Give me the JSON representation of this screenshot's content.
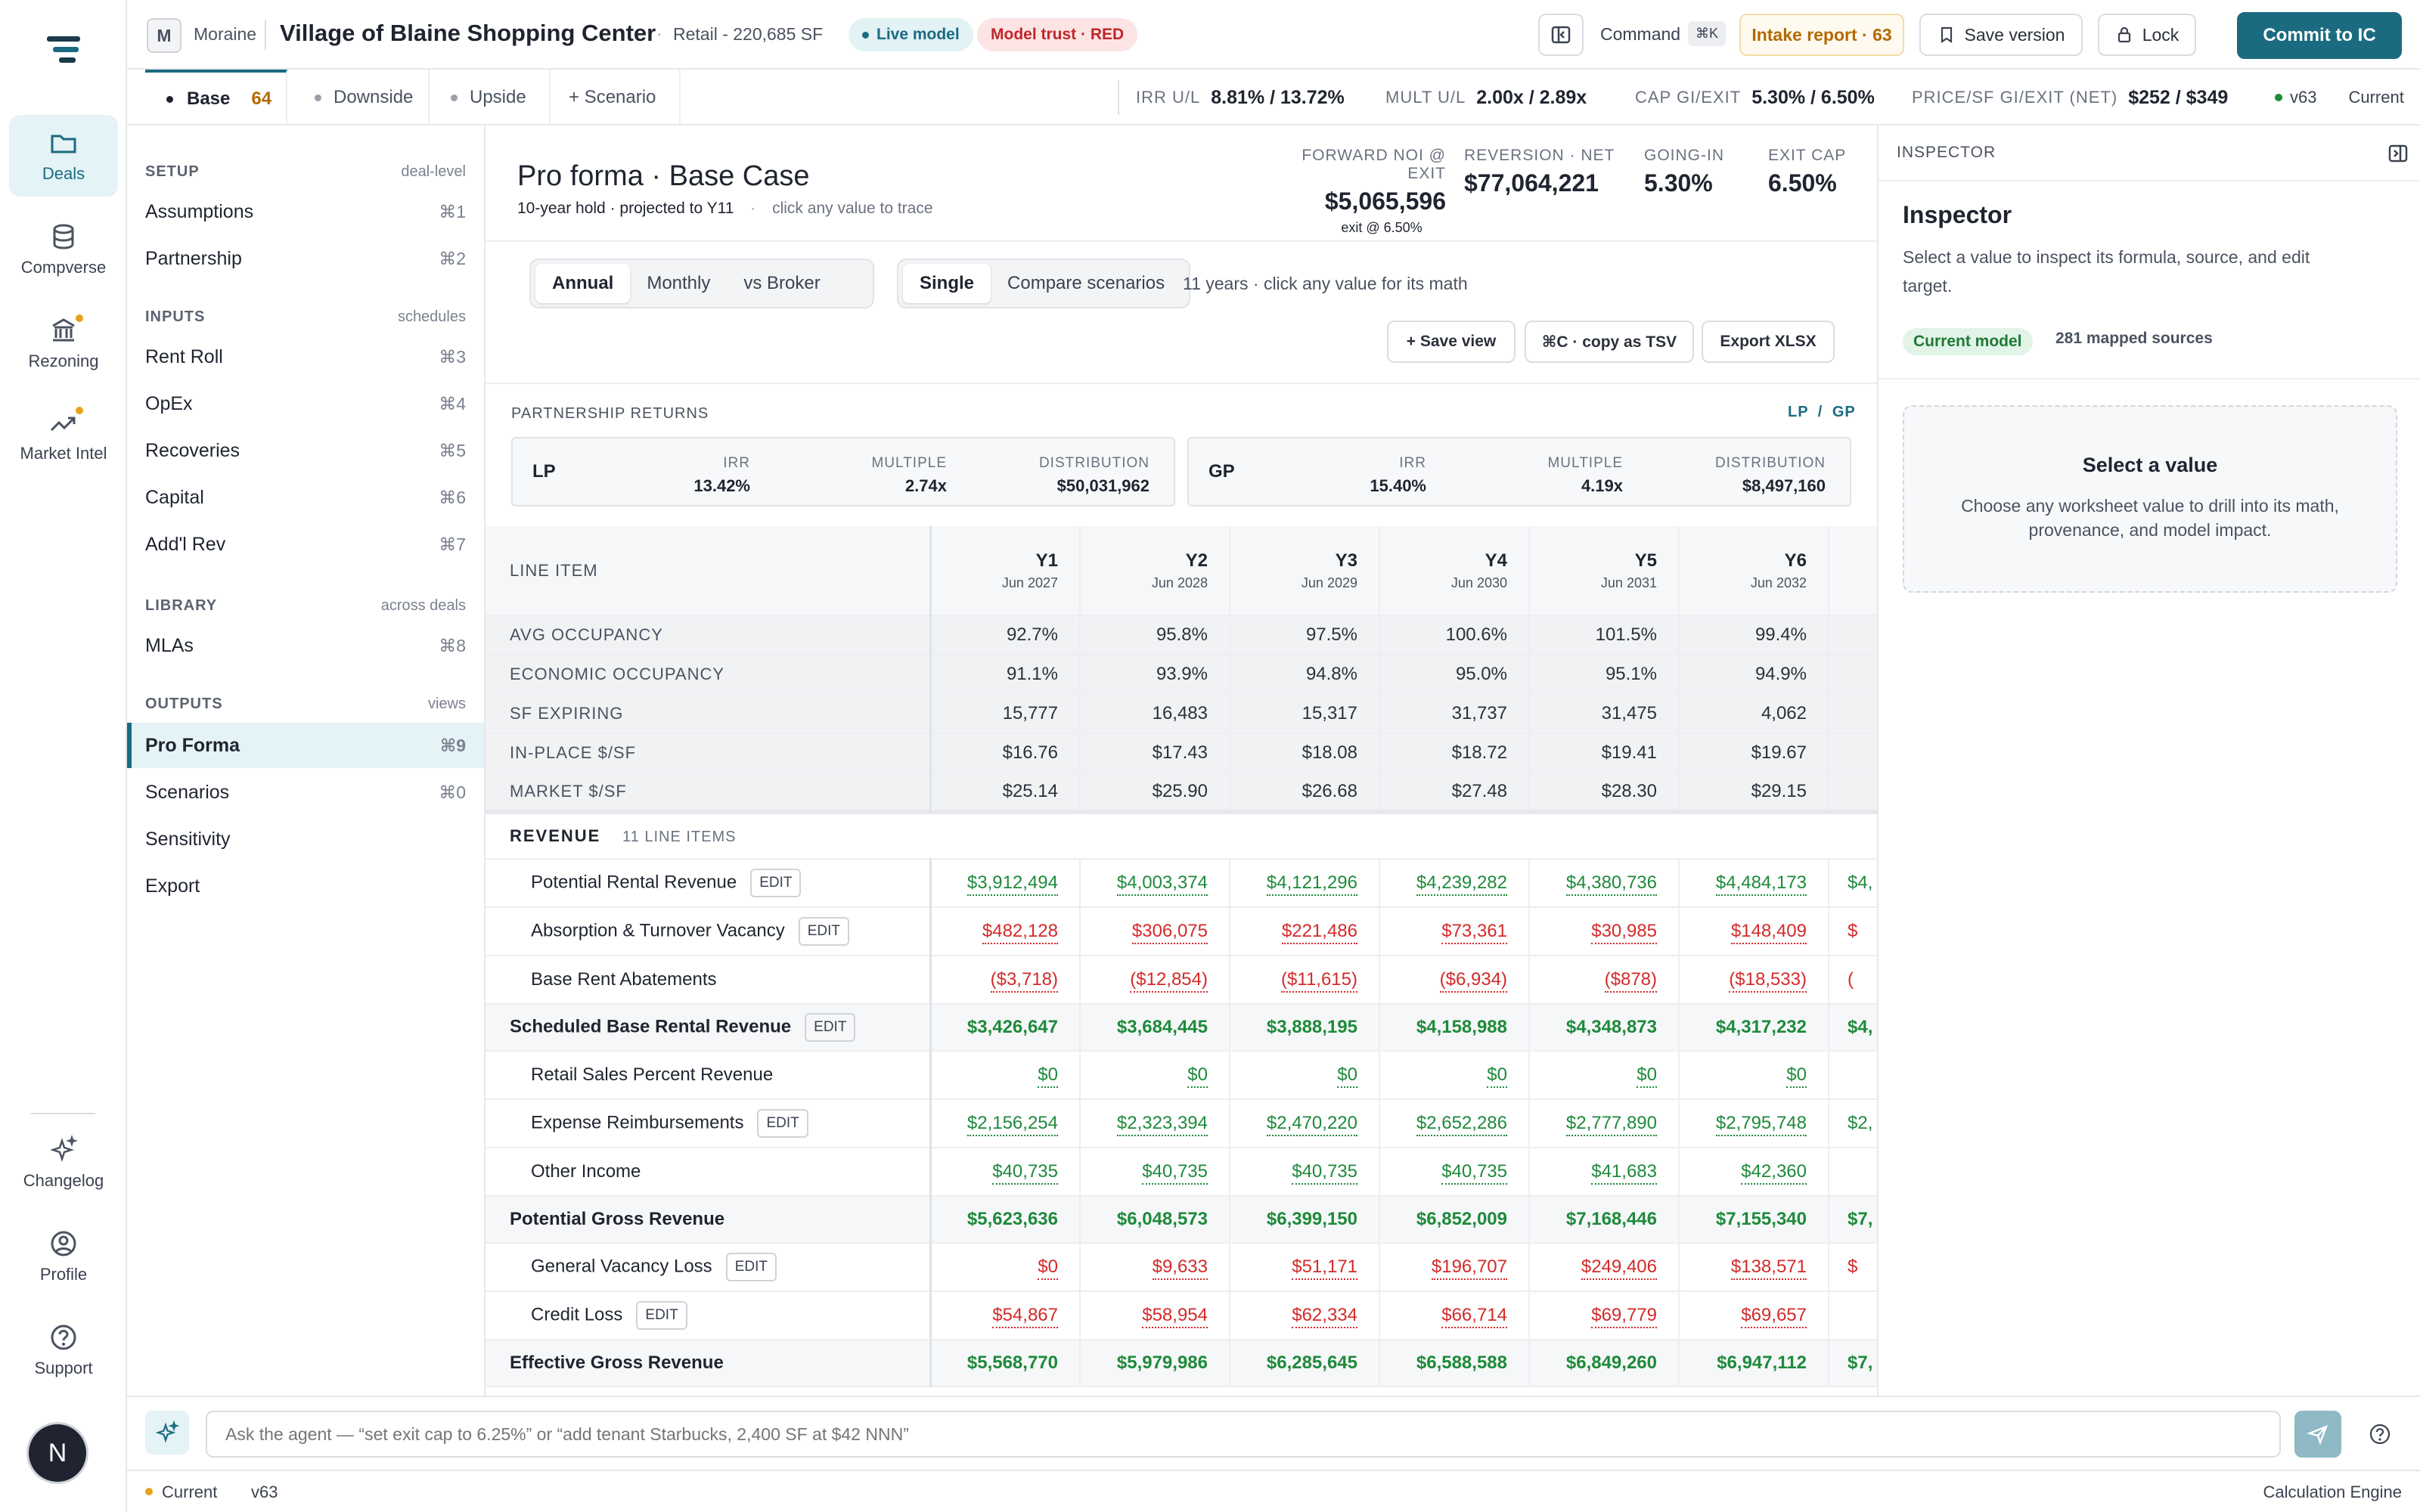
{
  "rail": {
    "items": [
      {
        "label": "Deals",
        "icon": "folder-icon"
      },
      {
        "label": "Compverse",
        "icon": "database-icon"
      },
      {
        "label": "Rezoning",
        "icon": "bank-icon"
      },
      {
        "label": "Market Intel",
        "icon": "trend-icon"
      },
      {
        "label": "Changelog",
        "icon": "sparkle-icon"
      },
      {
        "label": "Profile",
        "icon": "user-icon"
      },
      {
        "label": "Support",
        "icon": "help-icon"
      }
    ],
    "avatar_initial": "N"
  },
  "topbar": {
    "org_initial": "M",
    "org": "Moraine",
    "deal_title": "Village of Blaine Shopping Center",
    "deal_meta": "Retail - 220,685 SF",
    "live_badge": "Live model",
    "trust_badge": "Model trust · RED",
    "command_label": "Command",
    "command_key": "⌘K",
    "intake_label": "Intake report · 63",
    "save_version": "Save version",
    "lock": "Lock",
    "commit": "Commit to IC"
  },
  "scenarios": {
    "tabs": [
      {
        "label": "Base",
        "score": "64"
      },
      {
        "label": "Downside"
      },
      {
        "label": "Upside"
      }
    ],
    "add": "+ Scenario",
    "kpis": [
      {
        "label": "IRR U/L",
        "value": "8.81% / 13.72%"
      },
      {
        "label": "MULT U/L",
        "value": "2.00x / 2.89x"
      },
      {
        "label": "CAP GI/EXIT",
        "value": "5.30% / 6.50%"
      },
      {
        "label": "PRICE/SF GI/EXIT (NET)",
        "value": "$252 / $349"
      }
    ],
    "version": "v63",
    "version_state": "Current"
  },
  "nav": {
    "setup": {
      "title": "SETUP",
      "hint": "deal-level",
      "items": [
        {
          "label": "Assumptions",
          "key": "⌘1"
        },
        {
          "label": "Partnership",
          "key": "⌘2"
        }
      ]
    },
    "inputs": {
      "title": "INPUTS",
      "hint": "schedules",
      "items": [
        {
          "label": "Rent Roll",
          "key": "⌘3"
        },
        {
          "label": "OpEx",
          "key": "⌘4"
        },
        {
          "label": "Recoveries",
          "key": "⌘5"
        },
        {
          "label": "Capital",
          "key": "⌘6"
        },
        {
          "label": "Add'l Rev",
          "key": "⌘7"
        }
      ]
    },
    "library": {
      "title": "LIBRARY",
      "hint": "across deals",
      "items": [
        {
          "label": "MLAs",
          "key": "⌘8"
        }
      ]
    },
    "outputs": {
      "title": "OUTPUTS",
      "hint": "views",
      "items": [
        {
          "label": "Pro Forma",
          "key": "⌘9"
        },
        {
          "label": "Scenarios",
          "key": "⌘0"
        },
        {
          "label": "Sensitivity",
          "key": ""
        },
        {
          "label": "Export",
          "key": ""
        }
      ]
    }
  },
  "proforma": {
    "title": "Pro forma · Base Case",
    "subtitle": "10-year hold · projected to Y11",
    "hint": "click any value to trace",
    "metrics": [
      {
        "label": "FORWARD NOI @ EXIT",
        "value": "$5,065,596",
        "note": "exit @ 6.50%"
      },
      {
        "label": "REVERSION · NET",
        "value": "$77,064,221"
      },
      {
        "label": "GOING-IN",
        "value": "5.30%"
      },
      {
        "label": "EXIT CAP",
        "value": "6.50%"
      }
    ],
    "period_tabs": [
      "Annual",
      "Monthly",
      "vs Broker"
    ],
    "mode_tabs": [
      "Single",
      "Compare scenarios"
    ],
    "years_note": "11 years · click any value for its math",
    "actions": [
      "+ Save view",
      "⌘C · copy as TSV",
      "Export XLSX"
    ]
  },
  "partnership": {
    "title": "PARTNERSHIP RETURNS",
    "toggle": "LP / GP",
    "labels": {
      "irr": "IRR",
      "multiple": "MULTIPLE",
      "distribution": "DISTRIBUTION"
    },
    "lp": {
      "name": "LP",
      "irr": "13.42%",
      "multiple": "2.74x",
      "distribution": "$50,031,962"
    },
    "gp": {
      "name": "GP",
      "irr": "15.40%",
      "multiple": "4.19x",
      "distribution": "$8,497,160"
    }
  },
  "table": {
    "line_item_header": "LINE ITEM",
    "years": [
      {
        "y": "Y1",
        "d": "Jun 2027"
      },
      {
        "y": "Y2",
        "d": "Jun 2028"
      },
      {
        "y": "Y3",
        "d": "Jun 2029"
      },
      {
        "y": "Y4",
        "d": "Jun 2030"
      },
      {
        "y": "Y5",
        "d": "Jun 2031"
      },
      {
        "y": "Y6",
        "d": "Jun 2032"
      }
    ],
    "stats": [
      {
        "label": "AVG OCCUPANCY",
        "values": [
          "92.7%",
          "95.8%",
          "97.5%",
          "100.6%",
          "101.5%",
          "99.4%"
        ]
      },
      {
        "label": "ECONOMIC OCCUPANCY",
        "values": [
          "91.1%",
          "93.9%",
          "94.8%",
          "95.0%",
          "95.1%",
          "94.9%"
        ]
      },
      {
        "label": "SF EXPIRING",
        "values": [
          "15,777",
          "16,483",
          "15,317",
          "31,737",
          "31,475",
          "4,062"
        ]
      },
      {
        "label": "IN-PLACE $/SF",
        "values": [
          "$16.76",
          "$17.43",
          "$18.08",
          "$18.72",
          "$19.41",
          "$19.67"
        ]
      },
      {
        "label": "MARKET $/SF",
        "values": [
          "$25.14",
          "$25.90",
          "$26.68",
          "$27.48",
          "$28.30",
          "$29.15"
        ]
      }
    ],
    "revenue_label": "REVENUE",
    "revenue_count": "11 LINE ITEMS",
    "edit_label": "EDIT",
    "rows": [
      {
        "label": "Potential Rental Revenue",
        "edit": true,
        "kind": "line",
        "tone": "g",
        "values": [
          "$3,912,494",
          "$4,003,374",
          "$4,121,296",
          "$4,239,282",
          "$4,380,736",
          "$4,484,173",
          "$4,"
        ]
      },
      {
        "label": "Absorption & Turnover Vacancy",
        "edit": true,
        "kind": "line",
        "tone": "r",
        "values": [
          "$482,128",
          "$306,075",
          "$221,486",
          "$73,361",
          "$30,985",
          "$148,409",
          "$"
        ]
      },
      {
        "label": "Base Rent Abatements",
        "edit": false,
        "kind": "line",
        "tone": "r",
        "values": [
          "($3,718)",
          "($12,854)",
          "($11,615)",
          "($6,934)",
          "($878)",
          "($18,533)",
          "("
        ]
      },
      {
        "label": "Scheduled Base Rental Revenue",
        "edit": true,
        "kind": "sub",
        "tone": "g",
        "values": [
          "$3,426,647",
          "$3,684,445",
          "$3,888,195",
          "$4,158,988",
          "$4,348,873",
          "$4,317,232",
          "$4,"
        ]
      },
      {
        "label": "Retail Sales Percent Revenue",
        "edit": false,
        "kind": "line",
        "tone": "g",
        "values": [
          "$0",
          "$0",
          "$0",
          "$0",
          "$0",
          "$0",
          ""
        ]
      },
      {
        "label": "Expense Reimbursements",
        "edit": true,
        "kind": "line",
        "tone": "g",
        "values": [
          "$2,156,254",
          "$2,323,394",
          "$2,470,220",
          "$2,652,286",
          "$2,777,890",
          "$2,795,748",
          "$2,"
        ]
      },
      {
        "label": "Other Income",
        "edit": false,
        "kind": "line",
        "tone": "g",
        "values": [
          "$40,735",
          "$40,735",
          "$40,735",
          "$40,735",
          "$41,683",
          "$42,360",
          ""
        ]
      },
      {
        "label": "Potential Gross Revenue",
        "edit": false,
        "kind": "sub",
        "tone": "g",
        "values": [
          "$5,623,636",
          "$6,048,573",
          "$6,399,150",
          "$6,852,009",
          "$7,168,446",
          "$7,155,340",
          "$7,"
        ]
      },
      {
        "label": "General Vacancy Loss",
        "edit": true,
        "kind": "line",
        "tone": "r",
        "values": [
          "$0",
          "$9,633",
          "$51,171",
          "$196,707",
          "$249,406",
          "$138,571",
          "$"
        ]
      },
      {
        "label": "Credit Loss",
        "edit": true,
        "kind": "line",
        "tone": "r",
        "values": [
          "$54,867",
          "$58,954",
          "$62,334",
          "$66,714",
          "$69,779",
          "$69,657",
          ""
        ]
      },
      {
        "label": "Effective Gross Revenue",
        "edit": false,
        "kind": "sub",
        "tone": "g",
        "values": [
          "$5,568,770",
          "$5,979,986",
          "$6,285,645",
          "$6,588,588",
          "$6,849,260",
          "$6,947,112",
          "$7,"
        ]
      }
    ]
  },
  "inspector": {
    "header": "INSPECTOR",
    "title": "Inspector",
    "description": "Select a value to inspect its formula, source, and edit target.",
    "model_badge": "Current model",
    "sources": "281 mapped sources",
    "empty_title": "Select a value",
    "empty_body": "Choose any worksheet value to drill into its math, provenance, and model impact."
  },
  "agent": {
    "placeholder": "Ask the agent — “set exit cap to 6.25%” or “add tenant Starbucks, 2,400 SF at $42 NNN”"
  },
  "status": {
    "state": "Current",
    "version": "v63",
    "engine": "Calculation Engine"
  },
  "colors": {
    "accent": "#1b6b80",
    "positive": "#1e8a3b",
    "negative": "#d42a2a",
    "warning": "#e8a21a"
  }
}
